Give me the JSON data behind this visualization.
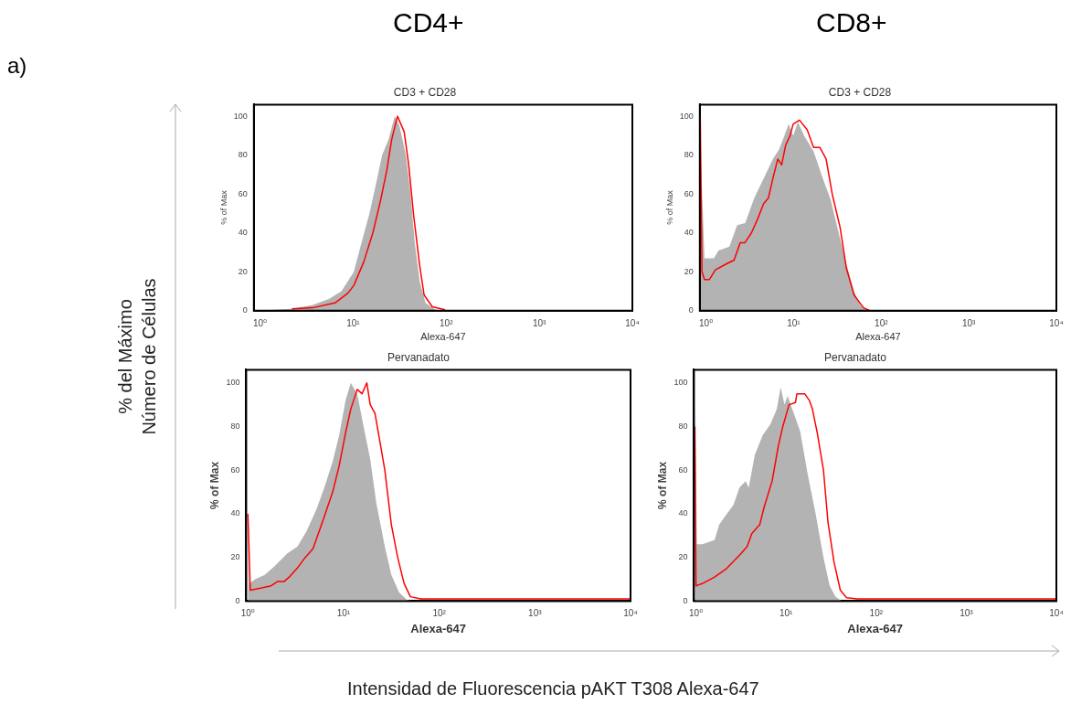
{
  "chart_data": [
    {
      "type": "other",
      "annotations": [
        "a)",
        "CD4+",
        "CD8+"
      ],
      "ylabel": "% del Máximo\nNúmero de Células",
      "xlabel": "Intensidad de Fluorescencia pAKT T308 Alexa-647"
    },
    {
      "type": "area",
      "log": "x",
      "title": "CD3 + CD28",
      "xlabel": "Alexa-647",
      "ylabel": "% of Max",
      "xlim": [
        0.86,
        10000
      ],
      "xticks": [
        {
          "value": 1,
          "label": "10⁰"
        },
        {
          "value": 10,
          "label": "10¹"
        },
        {
          "value": 100,
          "label": "10²"
        },
        {
          "value": 1000,
          "label": "10³"
        },
        {
          "value": 10000,
          "label": "10⁴"
        }
      ],
      "ylim": [
        0,
        106
      ],
      "yticks": [
        0,
        20,
        40,
        60,
        80,
        100
      ],
      "series": [
        {
          "type": "area",
          "color": "#b3b3b3",
          "x": [
            0.9,
            2.2,
            3.7,
            5.5,
            7.5,
            10.2,
            12,
            15,
            17.6,
            20.5,
            24,
            28,
            31.5,
            37,
            41.5,
            46,
            52,
            60,
            77,
            90
          ],
          "values": [
            0,
            1,
            3,
            6,
            10,
            20,
            33,
            50,
            65,
            80,
            88,
            100,
            95,
            80,
            60,
            35,
            15,
            4,
            0.5,
            0
          ]
        },
        {
          "type": "line",
          "color": "#ff0000",
          "x": [
            2.2,
            3.7,
            6.4,
            8.8,
            10.2,
            13,
            16.3,
            19.8,
            23,
            26,
            30,
            35.4,
            39.6,
            44.5,
            52,
            58,
            71,
            97
          ],
          "values": [
            1,
            1.5,
            4,
            9,
            13,
            25,
            40,
            57,
            72,
            88,
            100,
            92,
            75,
            50,
            23,
            8,
            2,
            0.5
          ]
        }
      ]
    },
    {
      "type": "area",
      "log": "x",
      "title": "CD3 + CD28",
      "xlabel": "Alexa-647",
      "ylabel": "% of Max",
      "xlim": [
        0.85,
        10000
      ],
      "xticks": [
        {
          "value": 1,
          "label": "10⁰"
        },
        {
          "value": 10,
          "label": "10¹"
        },
        {
          "value": 100,
          "label": "10²"
        },
        {
          "value": 1000,
          "label": "10³"
        },
        {
          "value": 10000,
          "label": "10⁴"
        }
      ],
      "ylim": [
        0,
        106
      ],
      "yticks": [
        0,
        20,
        40,
        60,
        80,
        100
      ],
      "series": [
        {
          "type": "area",
          "color": "#b3b3b3",
          "x": [
            0.87,
            0.96,
            1.23,
            1.39,
            1.85,
            2.27,
            2.8,
            3.56,
            4.55,
            5.8,
            6.85,
            8.8,
            9.9,
            11.2,
            13.2,
            16.9,
            21.6,
            26.5,
            32.7,
            40,
            49,
            57.6,
            68
          ],
          "values": [
            81,
            27,
            27,
            31,
            33,
            44,
            45,
            58,
            68,
            78,
            83,
            96,
            90,
            97,
            90,
            82,
            68,
            57,
            40,
            24,
            10,
            3,
            0
          ]
        },
        {
          "type": "line",
          "color": "#ff0000",
          "x": [
            0.86,
            0.9,
            0.96,
            1.09,
            1.28,
            1.7,
            2.09,
            2.46,
            2.78,
            3.3,
            3.87,
            4.55,
            5.16,
            5.8,
            6.6,
            7.3,
            8.1,
            9.1,
            9.9,
            11.7,
            14.3,
            16.9,
            19.9,
            23.5,
            27.6,
            33.9,
            40,
            49,
            63,
            74
          ],
          "values": [
            100,
            20,
            16,
            16,
            21,
            24,
            26,
            35,
            35,
            40,
            47,
            55,
            58,
            68,
            78,
            75,
            85,
            90,
            96,
            98,
            93,
            84,
            84,
            78,
            60,
            43,
            22,
            8,
            1.5,
            0
          ]
        }
      ]
    },
    {
      "type": "area",
      "log": "x",
      "title": "Pervanadato",
      "xlabel": "Alexa-647",
      "ylabel": "% of Max",
      "xlim": [
        0.96,
        10000
      ],
      "xticks": [
        {
          "value": 1,
          "label": "10⁰"
        },
        {
          "value": 10,
          "label": "10¹"
        },
        {
          "value": 100,
          "label": "10²"
        },
        {
          "value": 1000,
          "label": "10³"
        },
        {
          "value": 10000,
          "label": "10⁴"
        }
      ],
      "ylim": [
        0,
        106
      ],
      "yticks": [
        0,
        20,
        40,
        60,
        80,
        100
      ],
      "series": [
        {
          "type": "area",
          "color": "#b3b3b3",
          "x": [
            1.0,
            1.03,
            1.19,
            1.5,
            1.9,
            2.6,
            3.3,
            4.1,
            5.2,
            6.3,
            7.7,
            9.0,
            10.5,
            11.9,
            13.9,
            16.2,
            19,
            22,
            27,
            31.6,
            38,
            46,
            54
          ],
          "values": [
            42,
            8,
            10,
            12,
            16,
            22,
            25,
            32,
            42,
            52,
            64,
            76,
            92,
            100,
            95,
            80,
            65,
            45,
            25,
            12,
            4,
            0.5,
            0
          ]
        },
        {
          "type": "line",
          "color": "#ff0000",
          "x": [
            1.0,
            1.06,
            1.39,
            1.75,
            2.05,
            2.4,
            2.7,
            3.27,
            3.98,
            4.8,
            6.1,
            7.7,
            9.0,
            10.6,
            11.9,
            13.9,
            15.6,
            17.5,
            19,
            21.3,
            24,
            27,
            31.6,
            36.8,
            43,
            50,
            64,
            100,
            10000
          ],
          "values": [
            40,
            5,
            6,
            7,
            9,
            9,
            11,
            15,
            20,
            24,
            37,
            50,
            62,
            78,
            88,
            97,
            95,
            100,
            90,
            86,
            73,
            60,
            35,
            20,
            8,
            2,
            1,
            1,
            1
          ]
        }
      ]
    },
    {
      "type": "area",
      "log": "x",
      "title": "Pervanadato",
      "xlabel": "Alexa-647",
      "ylabel": "% of Max",
      "xlim": [
        0.95,
        10000
      ],
      "xticks": [
        {
          "value": 1,
          "label": "10⁰"
        },
        {
          "value": 10,
          "label": "10¹"
        },
        {
          "value": 100,
          "label": "10²"
        },
        {
          "value": 1000,
          "label": "10³"
        },
        {
          "value": 10000,
          "label": "10⁴"
        }
      ],
      "ylim": [
        0,
        106
      ],
      "yticks": [
        0,
        20,
        40,
        60,
        80,
        100
      ],
      "series": [
        {
          "type": "area",
          "color": "#b3b3b3",
          "x": [
            0.98,
            1.02,
            1.17,
            1.37,
            1.61,
            1.81,
            2.2,
            2.6,
            3.04,
            3.56,
            3.85,
            4.5,
            5.5,
            6.7,
            7.9,
            8.7,
            9.6,
            10.4,
            11.7,
            14.3,
            17.4,
            21.3,
            26,
            30.5,
            35.5,
            41.5
          ],
          "values": [
            100,
            26,
            26,
            27,
            28,
            35,
            40,
            44,
            52,
            55,
            52,
            67,
            76,
            81,
            88,
            98,
            90,
            94,
            88,
            78,
            58,
            40,
            20,
            7,
            2,
            0
          ]
        },
        {
          "type": "line",
          "color": "#ff0000",
          "x": [
            0.97,
            1.0,
            1.17,
            1.61,
            2.2,
            3.04,
            3.7,
            4.17,
            5.1,
            5.7,
            7.0,
            8.2,
            9.2,
            10.8,
            12.7,
            13.2,
            16.1,
            18.1,
            19.6,
            22.2,
            26,
            29.2,
            34,
            40,
            47,
            62,
            10000
          ],
          "values": [
            80,
            7,
            8,
            11,
            15,
            21,
            25,
            31,
            35,
            43,
            55,
            71,
            80,
            90,
            91,
            95,
            95,
            92,
            88,
            77,
            60,
            36,
            18,
            5,
            1.5,
            1,
            1
          ]
        }
      ]
    }
  ]
}
